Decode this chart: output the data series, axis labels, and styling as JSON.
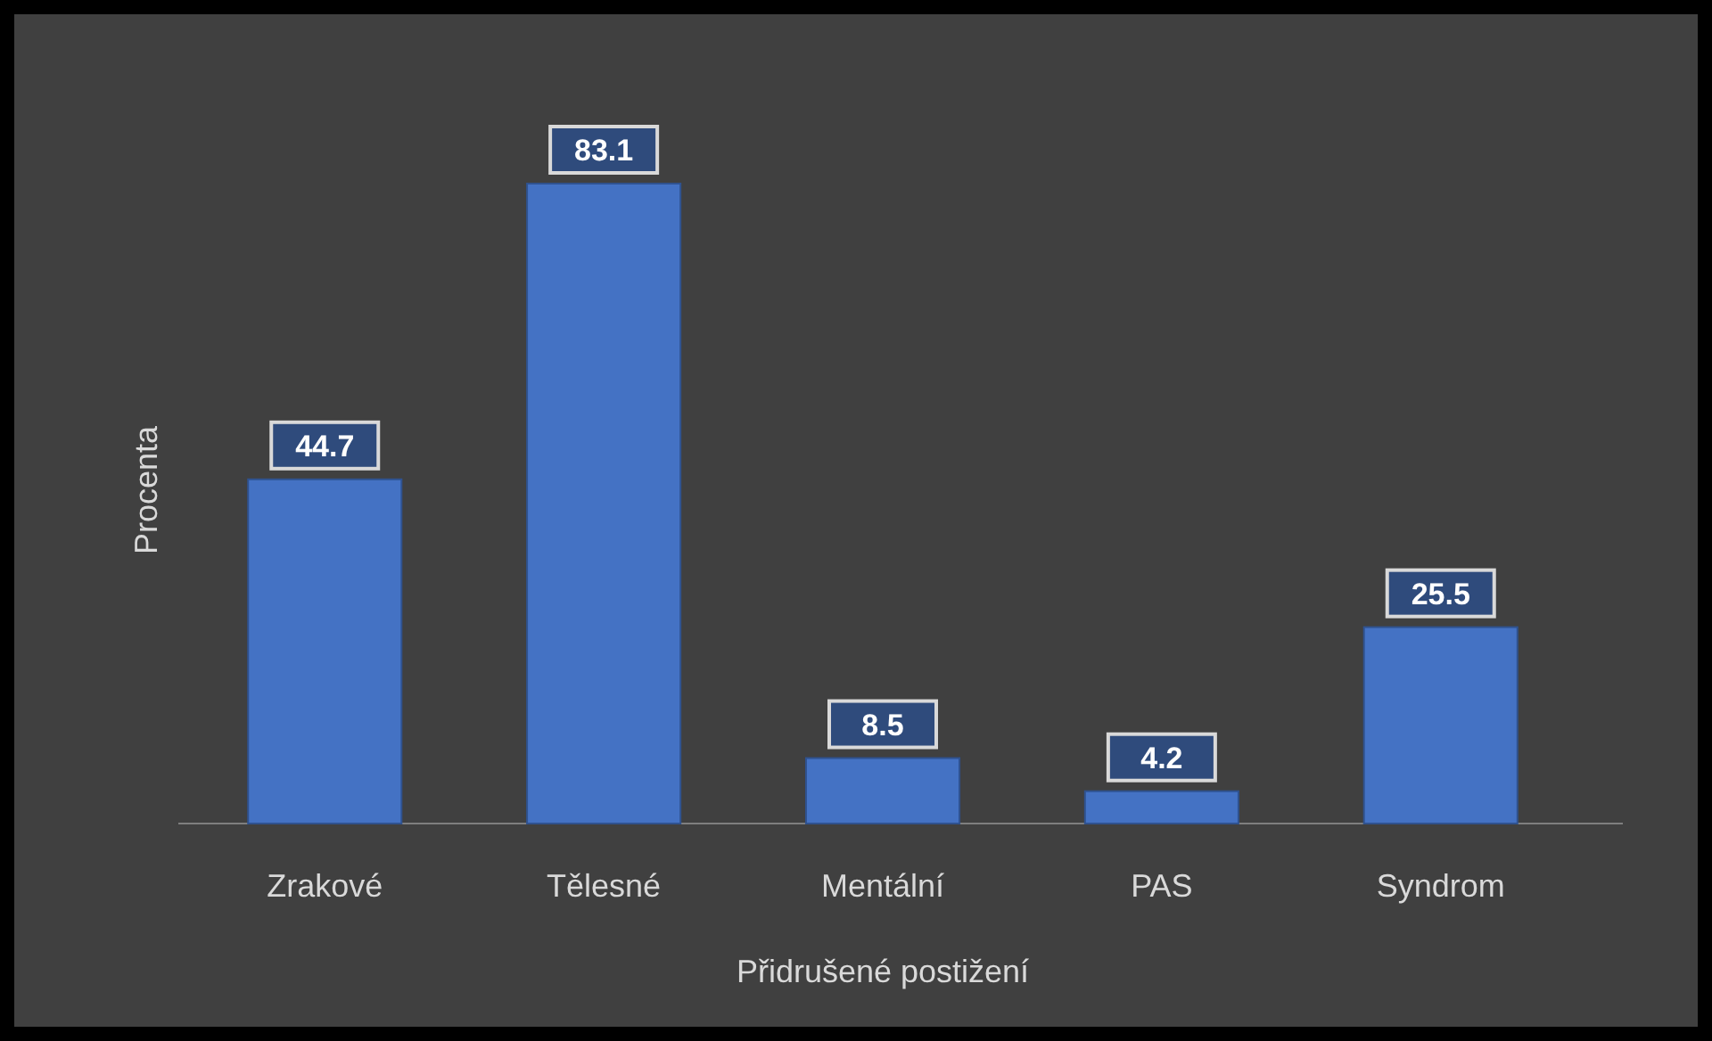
{
  "chart_data": {
    "type": "bar",
    "xlabel": "Přidrušené postižení",
    "ylabel": "Procenta",
    "categories": [
      "Zrakové",
      "Tělesné",
      "Mentální",
      "PAS",
      "Syndrom"
    ],
    "values": [
      44.7,
      83.1,
      8.5,
      4.2,
      25.5
    ],
    "color": "#4472c4",
    "data_labels": true
  }
}
